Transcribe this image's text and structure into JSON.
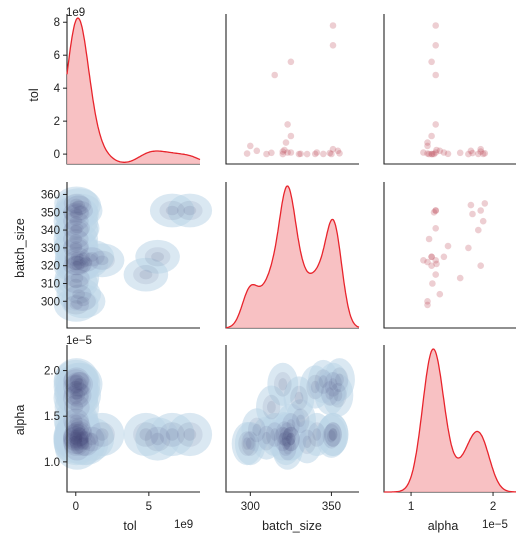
{
  "chart_data": {
    "type": "pairplot",
    "variables": [
      "tol",
      "batch_size",
      "alpha"
    ],
    "diag_kind": "kde",
    "upper_kind": "scatter",
    "lower_kind": "kde-filled",
    "grid": false,
    "colors": {
      "diag_line": "#e8242c",
      "diag_fill": "#f7b6b8",
      "scatter": "#c0505e",
      "kde_low": "#bcd6e8",
      "kde_high": "#3c3a6b"
    },
    "axes": {
      "tol": {
        "label": "tol",
        "range": [
          -600000000,
          8500000000
        ],
        "ticks_data": [
          0,
          2000000000,
          4000000000,
          6000000000,
          8000000000
        ],
        "tick_labels_y": [
          "0",
          "2",
          "4",
          "6",
          "8"
        ],
        "ticks_x_data": [
          0,
          5000000000
        ],
        "tick_labels_x": [
          "0",
          "5"
        ],
        "offset_label": "1e9"
      },
      "batch_size": {
        "label": "batch_size",
        "range": [
          285,
          367
        ],
        "ticks_y_data": [
          300,
          310,
          320,
          330,
          340,
          350,
          360
        ],
        "tick_labels_y": [
          "300",
          "310",
          "320",
          "330",
          "340",
          "350",
          "360"
        ],
        "ticks_x_data": [
          300,
          350
        ],
        "tick_labels_x": [
          "300",
          "350"
        ]
      },
      "alpha": {
        "label": "alpha",
        "range": [
          6.7e-06,
          2.28e-05
        ],
        "ticks_y_data": [
          1e-05,
          1.5e-05,
          2e-05
        ],
        "tick_labels_y": [
          "1.0",
          "1.5",
          "2.0"
        ],
        "ticks_x_data": [
          1e-05,
          2e-05
        ],
        "tick_labels_x": [
          "1",
          "2"
        ],
        "offset_label": "1e−5"
      }
    },
    "points": [
      {
        "tol": 0,
        "batch_size": 320,
        "alpha": 1.25e-05
      },
      {
        "tol": 4800000000,
        "batch_size": 315,
        "alpha": 1.3e-05
      },
      {
        "tol": 5600000000,
        "batch_size": 325,
        "alpha": 1.25e-05
      },
      {
        "tol": 7800000000,
        "batch_size": 351,
        "alpha": 1.3e-05
      },
      {
        "tol": 6600000000,
        "batch_size": 351,
        "alpha": 1.3e-05
      },
      {
        "tol": 1800000000,
        "batch_size": 323,
        "alpha": 1.3e-05
      },
      {
        "tol": 1100000000,
        "batch_size": 325,
        "alpha": 1.25e-05
      },
      {
        "tol": 700000000,
        "batch_size": 322,
        "alpha": 1.2e-05
      },
      {
        "tol": 300000000,
        "batch_size": 351,
        "alpha": 1.85e-05
      },
      {
        "tol": 500000000,
        "batch_size": 300,
        "alpha": 1.2e-05
      },
      {
        "tol": 150000000,
        "batch_size": 320,
        "alpha": 1.85e-05
      },
      {
        "tol": 100000000,
        "batch_size": 323,
        "alpha": 1.15e-05
      },
      {
        "tol": 100000000,
        "batch_size": 325,
        "alpha": 1.4e-05
      },
      {
        "tol": 100000000,
        "batch_size": 341,
        "alpha": 1.3e-05
      },
      {
        "tol": 80000000,
        "batch_size": 313,
        "alpha": 1.6e-05
      },
      {
        "tol": 60000000,
        "batch_size": 349,
        "alpha": 1.75e-05
      },
      {
        "tol": 50000000,
        "batch_size": 355,
        "alpha": 1.9e-05
      },
      {
        "tol": 200000000,
        "batch_size": 304,
        "alpha": 1.35e-05
      },
      {
        "tol": 30000000,
        "batch_size": 298,
        "alpha": 1.2e-05
      },
      {
        "tol": 20000000,
        "batch_size": 331,
        "alpha": 1.45e-05
      },
      {
        "tol": 10000000,
        "batch_size": 340,
        "alpha": 1.82e-05
      },
      {
        "tol": 10000000,
        "batch_size": 345,
        "alpha": 1.88e-05
      },
      {
        "tol": 5000000,
        "batch_size": 310,
        "alpha": 1.26e-05
      },
      {
        "tol": 5000000,
        "batch_size": 350,
        "alpha": 1.28e-05
      },
      {
        "tol": 1000000,
        "batch_size": 330,
        "alpha": 1.7e-05
      },
      {
        "tol": 1000000,
        "batch_size": 335,
        "alpha": 1.22e-05
      },
      {
        "tol": 250000000,
        "batch_size": 321,
        "alpha": 1.31e-05
      },
      {
        "tol": 200000000,
        "batch_size": 354,
        "alpha": 1.73e-05
      }
    ]
  }
}
